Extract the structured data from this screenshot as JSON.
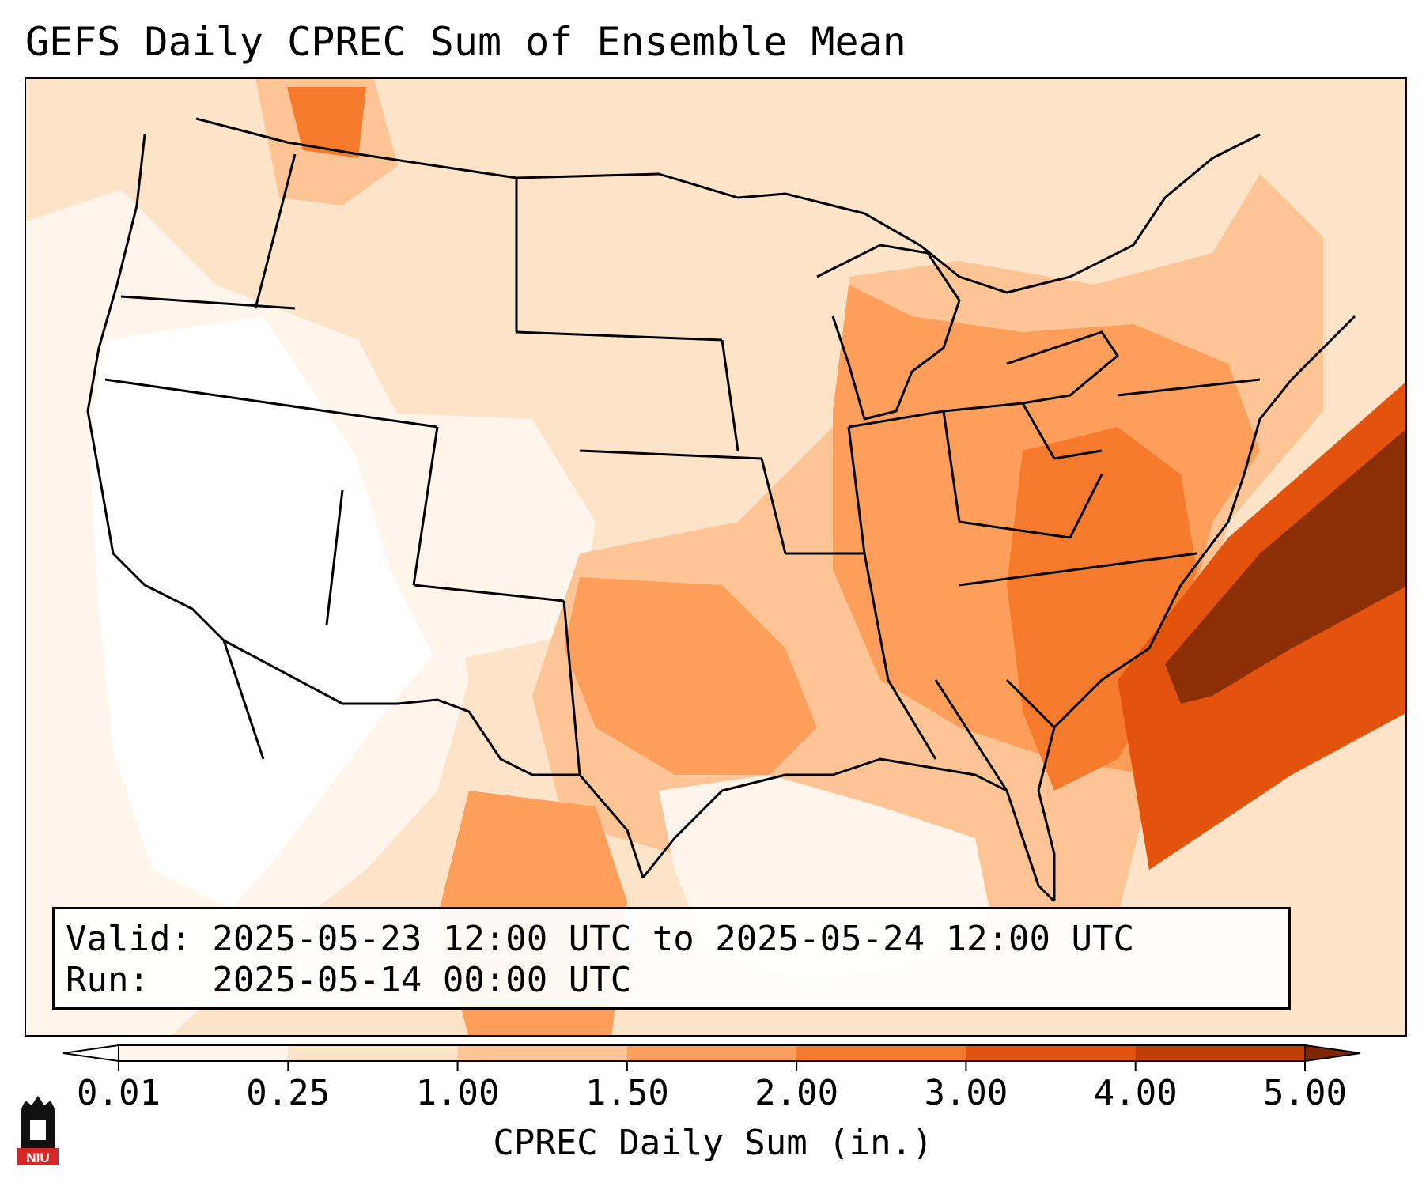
{
  "title": "GEFS Daily CPREC Sum of Ensemble Mean",
  "info": {
    "valid_line": "Valid: 2025-05-23 12:00 UTC to 2025-05-24 12:00 UTC",
    "run_line": "Run:   2025-05-14 00:00 UTC"
  },
  "colorbar": {
    "label": "CPREC Daily Sum (in.)",
    "ticks": [
      "0.01",
      "0.25",
      "1.00",
      "1.50",
      "2.00",
      "3.00",
      "4.00",
      "5.00"
    ],
    "colors": [
      "#fff5eb",
      "#fde3c8",
      "#fdc596",
      "#fd9f5b",
      "#f67a2c",
      "#e4530e",
      "#c03f03",
      "#8c2f06"
    ],
    "under_color": "#ffffff",
    "over_color": "#7f2704"
  },
  "logo": {
    "text": "NIU",
    "colors": {
      "red": "#d62828",
      "black": "#111111"
    }
  },
  "map": {
    "region": "Contiguous United States",
    "boundaries": "state and country borders, coastlines",
    "line_color": "#000000"
  }
}
